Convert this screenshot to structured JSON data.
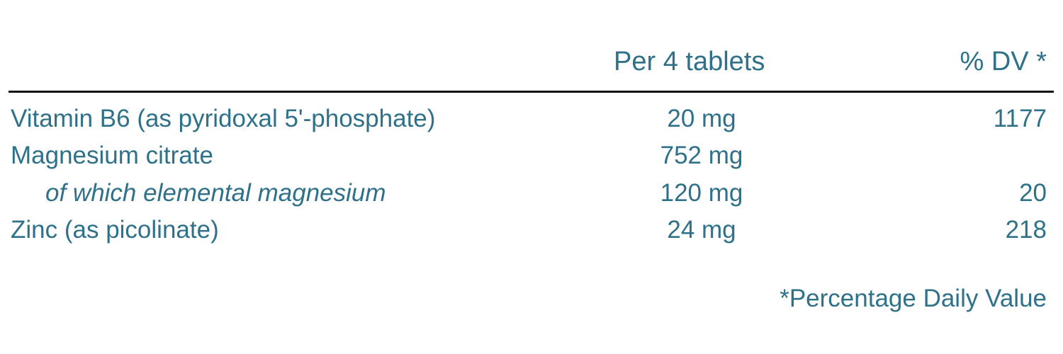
{
  "header": {
    "amount_label": "Per 4 tablets",
    "dv_label": "% DV *"
  },
  "rows": [
    {
      "name": "Vitamin B6 (as pyridoxal 5'-phosphate)",
      "amount": "20 mg",
      "dv": "1177",
      "sub": false
    },
    {
      "name": "Magnesium citrate",
      "amount": "752 mg",
      "dv": "",
      "sub": false
    },
    {
      "name": "of which elemental magnesium",
      "amount": "120 mg",
      "dv": "20",
      "sub": true
    },
    {
      "name": "Zinc (as picolinate)",
      "amount": "24 mg",
      "dv": "218",
      "sub": false
    }
  ],
  "footnote": "*Percentage Daily Value",
  "colors": {
    "text": "#2e7189",
    "rule": "#111111"
  }
}
